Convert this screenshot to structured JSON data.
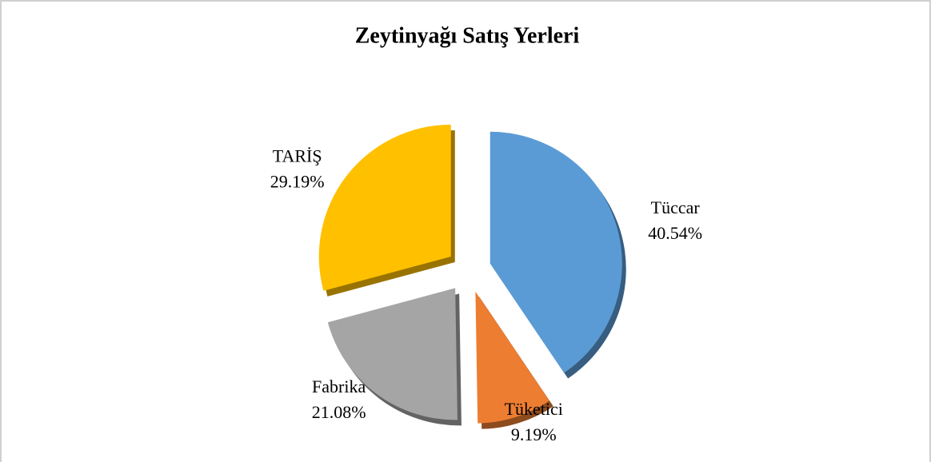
{
  "chart_data": {
    "type": "pie",
    "title": "Zeytinyağı Satış Yerleri",
    "categories": [
      "Tüccar",
      "Tüketici",
      "Fabrika",
      "TARİŞ"
    ],
    "values": [
      40.54,
      9.19,
      21.08,
      29.19
    ],
    "value_labels": [
      "40.54%",
      "9.19%",
      "21.08%",
      "29.19%"
    ],
    "colors": [
      "#5b9bd5",
      "#ed7d31",
      "#a5a5a5",
      "#ffc000"
    ]
  }
}
